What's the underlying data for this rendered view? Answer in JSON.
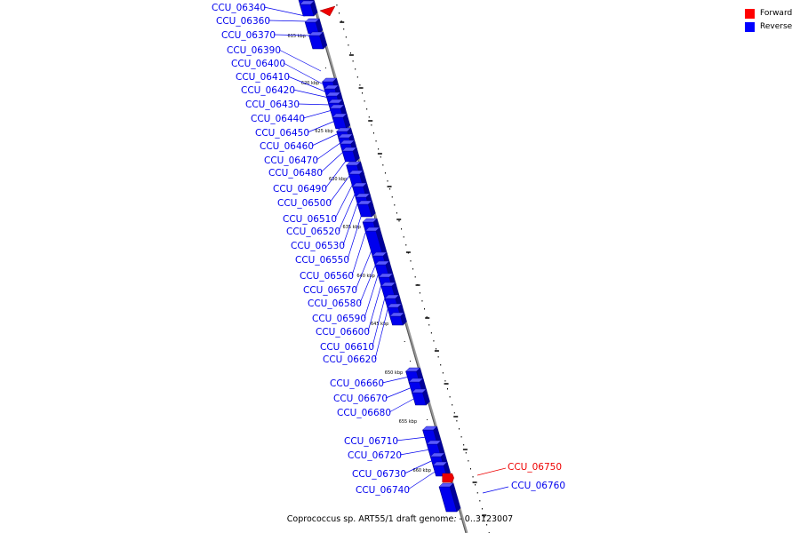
{
  "legend": {
    "forward_label": "Forward",
    "reverse_label": "Reverse",
    "forward_color": "#ff0000",
    "reverse_color": "#0000ff"
  },
  "caption": "Coprococcus sp. ART55/1 draft genome. - 0..3123007",
  "genes_reverse": [
    "CCU_06340",
    "CCU_06360",
    "CCU_06370",
    "CCU_06390",
    "CCU_06400",
    "CCU_06410",
    "CCU_06420",
    "CCU_06430",
    "CCU_06440",
    "CCU_06450",
    "CCU_06460",
    "CCU_06470",
    "CCU_06480",
    "CCU_06490",
    "CCU_06500",
    "CCU_06510",
    "CCU_06520",
    "CCU_06530",
    "CCU_06550",
    "CCU_06560",
    "CCU_06570",
    "CCU_06580",
    "CCU_06590",
    "CCU_06600",
    "CCU_06610",
    "CCU_06620",
    "CCU_06660",
    "CCU_06670",
    "CCU_06680",
    "CCU_06710",
    "CCU_06720",
    "CCU_06730",
    "CCU_06740",
    "CCU_06760"
  ],
  "genes_forward": [
    "CCU_06750"
  ],
  "scale_ticks": [
    "615 kbp",
    "620 kbp",
    "625 kbp",
    "630 kbp",
    "635 kbp",
    "640 kbp",
    "645 kbp",
    "650 kbp",
    "655 kbp",
    "660 kbp"
  ]
}
